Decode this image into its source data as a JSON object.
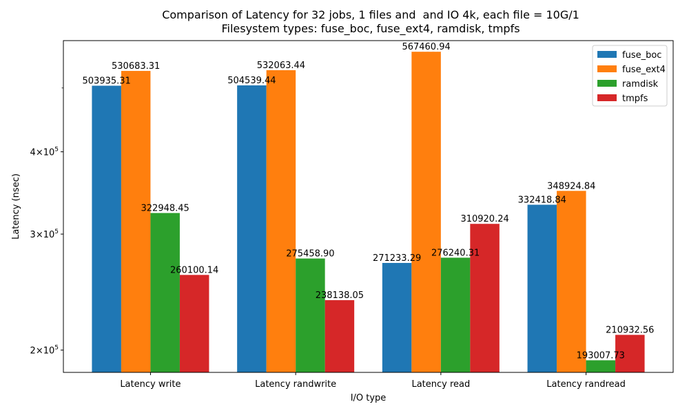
{
  "chart_data": {
    "type": "bar",
    "title": "Comparison of Latency for 32 jobs, 1 files and  and IO 4k, each file = 10G/1",
    "subtitle": "Filesystem types: fuse_boc, fuse_ext4, ramdisk, tmpfs",
    "xlabel": "I/O type",
    "ylabel": "Latency (nsec)",
    "yscale": "log",
    "ylim": [
      185000,
      590000
    ],
    "yticks": [
      {
        "value": 200000,
        "mantissa": "2",
        "base": "10",
        "exp": "5"
      },
      {
        "value": 300000,
        "mantissa": "3",
        "base": "10",
        "exp": "5"
      },
      {
        "value": 400000,
        "mantissa": "4",
        "base": "10",
        "exp": "5"
      }
    ],
    "categories": [
      "Latency write",
      "Latency randwrite",
      "Latency read",
      "Latency randread"
    ],
    "legend_position": "top-right",
    "series": [
      {
        "name": "fuse_boc",
        "color": "#1f77b4",
        "values": [
          503935.31,
          504539.44,
          271233.29,
          332418.84
        ],
        "labels": [
          "503935.31",
          "504539.44",
          "271233.29",
          "332418.84"
        ]
      },
      {
        "name": "fuse_ext4",
        "color": "#ff7f0e",
        "values": [
          530683.31,
          532063.44,
          567460.94,
          348924.84
        ],
        "labels": [
          "530683.31",
          "532063.44",
          "567460.94",
          "348924.84"
        ]
      },
      {
        "name": "ramdisk",
        "color": "#2ca02c",
        "values": [
          322948.45,
          275458.9,
          276240.31,
          193007.73
        ],
        "labels": [
          "322948.45",
          "275458.90",
          "276240.31",
          "193007.73"
        ]
      },
      {
        "name": "tmpfs",
        "color": "#d62728",
        "values": [
          260100.14,
          238138.05,
          310920.24,
          210932.56
        ],
        "labels": [
          "260100.14",
          "238138.05",
          "310920.24",
          "210932.56"
        ]
      }
    ]
  }
}
